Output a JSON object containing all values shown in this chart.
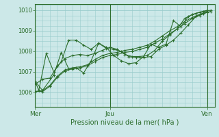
{
  "title": "Pression niveau de la mer( hPa )",
  "bg_color": "#cce8e8",
  "grid_color": "#99cccc",
  "line_color": "#2d6e2d",
  "plot_bg": "#cce8e8",
  "xlim": [
    0,
    48
  ],
  "ylim": [
    1005.3,
    1010.3
  ],
  "yticks": [
    1006,
    1007,
    1008,
    1009,
    1010
  ],
  "xtick_labels": [
    [
      "Mer",
      0
    ],
    [
      "Jeu",
      20
    ],
    [
      "Ven",
      46
    ]
  ],
  "vlines": [
    0,
    20,
    46
  ],
  "series": [
    {
      "x": [
        0,
        1,
        3,
        5,
        7,
        9,
        11,
        13,
        15,
        17,
        19,
        21,
        23,
        25,
        27,
        29,
        31,
        33,
        35,
        37,
        39,
        41,
        43,
        45,
        47
      ],
      "y": [
        1006.55,
        1006.1,
        1007.9,
        1007.0,
        1007.5,
        1008.55,
        1008.55,
        1008.3,
        1008.1,
        1008.4,
        1008.15,
        1008.1,
        1008.0,
        1007.75,
        1007.7,
        1007.7,
        1007.75,
        1008.1,
        1008.3,
        1008.55,
        1008.9,
        1009.3,
        1009.7,
        1009.85,
        1009.95
      ]
    },
    {
      "x": [
        0,
        2,
        4,
        6,
        8,
        10,
        12,
        14,
        16,
        18,
        20,
        22,
        24,
        26,
        28,
        30,
        32,
        34,
        36,
        38,
        40,
        42,
        44,
        46
      ],
      "y": [
        1006.05,
        1006.05,
        1006.3,
        1006.75,
        1007.05,
        1007.15,
        1007.2,
        1007.3,
        1007.5,
        1007.7,
        1007.8,
        1007.85,
        1007.95,
        1008.0,
        1008.1,
        1008.2,
        1008.4,
        1008.6,
        1008.85,
        1009.1,
        1009.35,
        1009.6,
        1009.75,
        1009.9
      ]
    },
    {
      "x": [
        0,
        2,
        4,
        6,
        8,
        10,
        12,
        14,
        16,
        18,
        20,
        22,
        24,
        26,
        28,
        30,
        32,
        34,
        36,
        38,
        40,
        42,
        44,
        46
      ],
      "y": [
        1006.05,
        1006.1,
        1006.35,
        1006.8,
        1007.1,
        1007.2,
        1007.25,
        1007.35,
        1007.6,
        1007.8,
        1007.9,
        1007.95,
        1008.05,
        1008.1,
        1008.2,
        1008.3,
        1008.5,
        1008.75,
        1009.0,
        1009.2,
        1009.45,
        1009.65,
        1009.8,
        1009.95
      ]
    },
    {
      "x": [
        0,
        2,
        5,
        7,
        9,
        11,
        13,
        15,
        17,
        19,
        21,
        23,
        25,
        27,
        29,
        31,
        33,
        35,
        37,
        39,
        41,
        43,
        45,
        47
      ],
      "y": [
        1006.55,
        1006.1,
        1006.85,
        1007.95,
        1007.15,
        1007.2,
        1006.95,
        1007.55,
        1008.4,
        1008.2,
        1007.8,
        1007.55,
        1007.4,
        1007.45,
        1007.75,
        1008.35,
        1008.2,
        1008.35,
        1009.5,
        1009.2,
        1009.7,
        1009.85,
        1009.95,
        1010.0
      ]
    },
    {
      "x": [
        0,
        2,
        4,
        6,
        8,
        10,
        12,
        14,
        16,
        18,
        20,
        22,
        24,
        26,
        28,
        30,
        32,
        34,
        36,
        38,
        40,
        42,
        44,
        46
      ],
      "y": [
        1006.4,
        1006.65,
        1006.7,
        1007.3,
        1007.65,
        1007.8,
        1007.85,
        1007.8,
        1007.9,
        1008.05,
        1008.2,
        1008.1,
        1007.85,
        1007.75,
        1007.75,
        1007.8,
        1008.05,
        1008.5,
        1008.8,
        1009.1,
        1009.6,
        1009.8,
        1009.9,
        1010.0
      ]
    }
  ]
}
